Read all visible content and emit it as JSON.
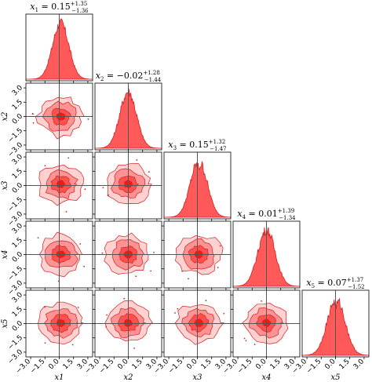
{
  "chart_data": {
    "type": "corner",
    "parameters": [
      {
        "symbol": "x",
        "sub": "1",
        "axis_label": "x1",
        "median": "0.15",
        "err_plus": "+1.35",
        "err_minus": "−1.36",
        "median_value": 0.15
      },
      {
        "symbol": "x",
        "sub": "2",
        "axis_label": "x2",
        "median": "−0.02",
        "err_plus": "+1.28",
        "err_minus": "−1.44",
        "median_value": -0.02
      },
      {
        "symbol": "x",
        "sub": "3",
        "axis_label": "x3",
        "median": "0.15",
        "err_plus": "+1.32",
        "err_minus": "−1.47",
        "median_value": 0.15
      },
      {
        "symbol": "x",
        "sub": "4",
        "axis_label": "x4",
        "median": "0.01",
        "err_plus": "+1.39",
        "err_minus": "−1.34",
        "median_value": 0.01
      },
      {
        "symbol": "x",
        "sub": "5",
        "axis_label": "x5",
        "median": "0.07",
        "err_plus": "+1.37",
        "err_minus": "−1.52",
        "median_value": 0.07
      }
    ],
    "axis_range": [
      -3.5,
      3.5
    ],
    "tick_values": [
      -3.0,
      -1.5,
      0.0,
      1.5,
      3.0
    ],
    "tick_labels": [
      "−3.0",
      "−1.5",
      "0.0",
      "1.5",
      "3.0"
    ],
    "truth_values": [
      0,
      0,
      0,
      0,
      0
    ],
    "colors": {
      "fill": "#ff0000",
      "line": "#d32020",
      "truth": "#555555",
      "frame": "#000000"
    }
  }
}
